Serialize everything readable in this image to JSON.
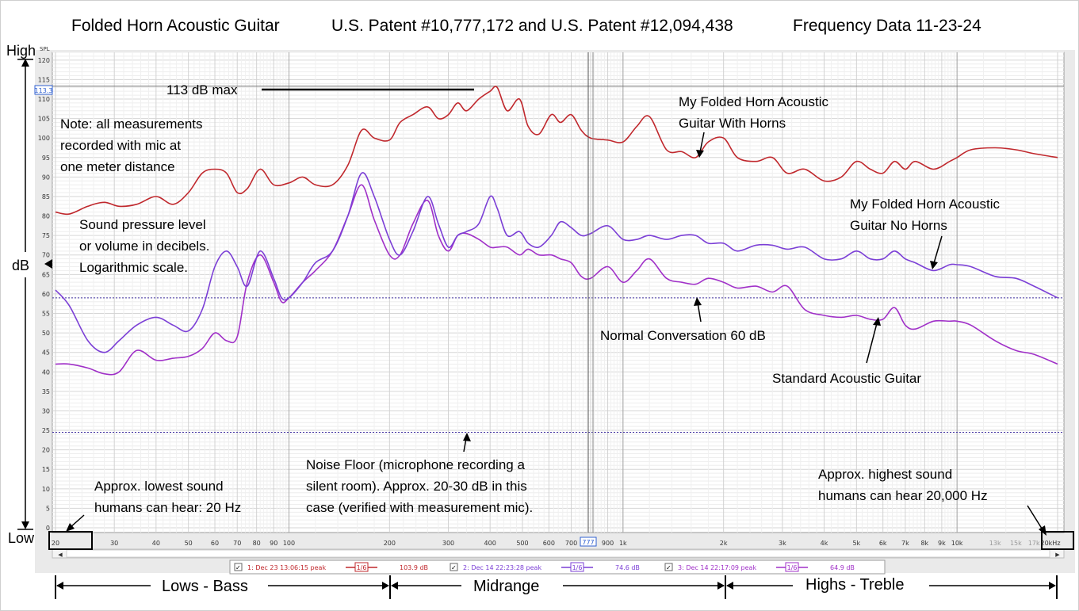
{
  "header": {
    "title": "Folded Horn Acoustic Guitar",
    "patents": "U.S. Patent #10,777,172 and U.S. Patent #12,094,438",
    "date": "Frequency Data 11-23-24"
  },
  "side": {
    "high": "High",
    "low": "Low",
    "db": "dB",
    "spl": "SPL"
  },
  "annotations": {
    "max_line": "113 dB max",
    "note": [
      "Note: all measurements",
      "recorded with mic at",
      "one meter distance"
    ],
    "spl": [
      "Sound pressure level",
      "or volume in decibels.",
      "Logarithmic scale."
    ],
    "horns": [
      "My Folded Horn Acoustic",
      "Guitar With Horns"
    ],
    "no_horns": [
      "My Folded Horn Acoustic",
      "Guitar No Horns"
    ],
    "conversation": "Normal Conversation 60 dB",
    "standard": "Standard Acoustic Guitar",
    "noise": [
      "Noise Floor (microphone recording a",
      "silent room). Approx. 20-30 dB in this",
      "case (verified with measurement mic)."
    ],
    "lowest": [
      "Approx. lowest sound",
      "humans can hear: 20 Hz"
    ],
    "highest": [
      "Approx. highest sound",
      "humans can hear 20,000 Hz"
    ]
  },
  "bands": {
    "lows": "Lows - Bass",
    "mid": "Midrange",
    "highs": "Highs - Treble"
  },
  "cursor": {
    "y_label": "113.3",
    "x_label": "777"
  },
  "legend": [
    {
      "label": "1: Dec 23 13:06:15 peak",
      "smoothing": "1/6",
      "value": "103.9 dB",
      "color": "#c0282d"
    },
    {
      "label": "2: Dec 14 22:23:28 peak",
      "smoothing": "1/6",
      "value": "74.6 dB",
      "color": "#7b3fd6"
    },
    {
      "label": "3: Dec 14 22:17:09 peak",
      "smoothing": "1/6",
      "value": "64.9 dB",
      "color": "#a030c8"
    }
  ],
  "chart_data": {
    "type": "line",
    "xlabel": "",
    "ylabel": "",
    "xscale": "log",
    "xlim": [
      20,
      20000
    ],
    "ylim": [
      0,
      122
    ],
    "y_ticks": [
      0,
      5,
      10,
      15,
      20,
      25,
      30,
      35,
      40,
      45,
      50,
      55,
      60,
      65,
      70,
      75,
      80,
      85,
      90,
      95,
      100,
      105,
      110,
      115,
      120
    ],
    "x_ticks": [
      {
        "v": 20,
        "l": "20"
      },
      {
        "v": 30,
        "l": "30"
      },
      {
        "v": 40,
        "l": "40"
      },
      {
        "v": 50,
        "l": "50"
      },
      {
        "v": 60,
        "l": "60"
      },
      {
        "v": 70,
        "l": "70"
      },
      {
        "v": 80,
        "l": "80"
      },
      {
        "v": 90,
        "l": "90"
      },
      {
        "v": 100,
        "l": "100"
      },
      {
        "v": 200,
        "l": "200"
      },
      {
        "v": 300,
        "l": "300"
      },
      {
        "v": 400,
        "l": "400"
      },
      {
        "v": 500,
        "l": "500"
      },
      {
        "v": 600,
        "l": "600"
      },
      {
        "v": 700,
        "l": "700"
      },
      {
        "v": 900,
        "l": "900"
      },
      {
        "v": 1000,
        "l": "1k"
      },
      {
        "v": 2000,
        "l": "2k"
      },
      {
        "v": 3000,
        "l": "3k"
      },
      {
        "v": 4000,
        "l": "4k"
      },
      {
        "v": 5000,
        "l": "5k"
      },
      {
        "v": 6000,
        "l": "6k"
      },
      {
        "v": 7000,
        "l": "7k"
      },
      {
        "v": 8000,
        "l": "8k"
      },
      {
        "v": 9000,
        "l": "9k"
      },
      {
        "v": 10000,
        "l": "10k"
      },
      {
        "v": 13000,
        "l": "13k"
      },
      {
        "v": 15000,
        "l": "15k"
      },
      {
        "v": 17000,
        "l": "17k"
      },
      {
        "v": 20000,
        "l": "20kHz"
      }
    ],
    "hlines": [
      {
        "y": 113.3,
        "color": "#777777",
        "dash": ""
      },
      {
        "y": 59,
        "color": "#4030a0",
        "dash": "2,2"
      },
      {
        "y": 24.5,
        "color": "#4030a0",
        "dash": "2,2"
      }
    ],
    "series": [
      {
        "name": "1: Dec 23 13:06:15 peak",
        "color": "#c0282d",
        "points": [
          [
            20,
            81
          ],
          [
            22,
            80.5
          ],
          [
            25,
            82.5
          ],
          [
            28,
            83.5
          ],
          [
            31,
            82.5
          ],
          [
            35,
            83
          ],
          [
            40,
            85
          ],
          [
            45,
            83
          ],
          [
            50,
            86
          ],
          [
            55,
            91
          ],
          [
            60,
            92
          ],
          [
            65,
            91
          ],
          [
            70,
            86
          ],
          [
            75,
            87
          ],
          [
            82,
            92
          ],
          [
            90,
            88
          ],
          [
            100,
            88.5
          ],
          [
            110,
            90
          ],
          [
            120,
            88
          ],
          [
            135,
            88
          ],
          [
            150,
            93
          ],
          [
            165,
            102
          ],
          [
            180,
            100
          ],
          [
            200,
            99.5
          ],
          [
            215,
            104
          ],
          [
            235,
            106
          ],
          [
            260,
            108
          ],
          [
            280,
            105
          ],
          [
            300,
            106
          ],
          [
            320,
            109
          ],
          [
            340,
            107
          ],
          [
            370,
            110
          ],
          [
            400,
            112
          ],
          [
            420,
            113
          ],
          [
            450,
            107
          ],
          [
            490,
            110
          ],
          [
            520,
            103
          ],
          [
            560,
            101
          ],
          [
            610,
            106
          ],
          [
            650,
            104
          ],
          [
            700,
            106
          ],
          [
            750,
            102
          ],
          [
            800,
            100
          ],
          [
            900,
            99.5
          ],
          [
            1000,
            99
          ],
          [
            1100,
            103
          ],
          [
            1200,
            105.5
          ],
          [
            1350,
            97
          ],
          [
            1500,
            96.5
          ],
          [
            1650,
            95
          ],
          [
            1800,
            99
          ],
          [
            2000,
            100
          ],
          [
            2200,
            95
          ],
          [
            2500,
            94
          ],
          [
            2800,
            95
          ],
          [
            3100,
            91
          ],
          [
            3500,
            92
          ],
          [
            4000,
            89
          ],
          [
            4500,
            90
          ],
          [
            5000,
            94
          ],
          [
            5500,
            92
          ],
          [
            6000,
            91
          ],
          [
            6500,
            94
          ],
          [
            7000,
            92
          ],
          [
            7500,
            94
          ],
          [
            8500,
            92
          ],
          [
            9500,
            94
          ],
          [
            10000,
            95
          ],
          [
            11000,
            97
          ],
          [
            13000,
            97.5
          ],
          [
            15000,
            97
          ],
          [
            17000,
            96
          ],
          [
            20000,
            95
          ]
        ]
      },
      {
        "name": "2: Dec 14 22:23:28 peak",
        "color": "#7b3fd6",
        "points": [
          [
            20,
            61
          ],
          [
            22,
            57
          ],
          [
            25,
            48
          ],
          [
            28,
            45
          ],
          [
            31,
            48
          ],
          [
            35,
            52
          ],
          [
            40,
            54
          ],
          [
            45,
            52
          ],
          [
            50,
            50.5
          ],
          [
            55,
            56
          ],
          [
            60,
            67
          ],
          [
            65,
            71
          ],
          [
            70,
            67
          ],
          [
            75,
            62
          ],
          [
            82,
            71
          ],
          [
            90,
            64
          ],
          [
            95,
            59
          ],
          [
            100,
            59
          ],
          [
            110,
            63
          ],
          [
            120,
            68
          ],
          [
            135,
            71
          ],
          [
            150,
            80
          ],
          [
            165,
            91
          ],
          [
            180,
            85
          ],
          [
            200,
            74
          ],
          [
            215,
            70
          ],
          [
            235,
            76
          ],
          [
            260,
            85
          ],
          [
            280,
            78
          ],
          [
            300,
            72
          ],
          [
            320,
            75
          ],
          [
            340,
            76
          ],
          [
            370,
            78
          ],
          [
            400,
            85
          ],
          [
            420,
            82
          ],
          [
            450,
            75
          ],
          [
            490,
            76
          ],
          [
            520,
            73
          ],
          [
            560,
            72
          ],
          [
            610,
            75
          ],
          [
            650,
            78.5
          ],
          [
            700,
            77
          ],
          [
            750,
            75
          ],
          [
            800,
            75.5
          ],
          [
            900,
            77.5
          ],
          [
            1000,
            74
          ],
          [
            1100,
            74
          ],
          [
            1200,
            75
          ],
          [
            1350,
            74
          ],
          [
            1500,
            75
          ],
          [
            1650,
            75
          ],
          [
            1800,
            73
          ],
          [
            2000,
            73
          ],
          [
            2200,
            71
          ],
          [
            2500,
            72.5
          ],
          [
            2800,
            72.5
          ],
          [
            3100,
            71.5
          ],
          [
            3500,
            72
          ],
          [
            4000,
            69
          ],
          [
            4500,
            69
          ],
          [
            5000,
            71
          ],
          [
            5500,
            69
          ],
          [
            6000,
            69
          ],
          [
            6500,
            71
          ],
          [
            7000,
            69
          ],
          [
            7500,
            68
          ],
          [
            8500,
            66
          ],
          [
            9500,
            67.5
          ],
          [
            10000,
            67.5
          ],
          [
            11000,
            67
          ],
          [
            13000,
            64.5
          ],
          [
            15000,
            64
          ],
          [
            17000,
            62
          ],
          [
            20000,
            59
          ]
        ]
      },
      {
        "name": "3: Dec 14 22:17:09 peak",
        "color": "#a030c8",
        "points": [
          [
            20,
            42
          ],
          [
            22,
            42
          ],
          [
            25,
            41
          ],
          [
            28,
            39.5
          ],
          [
            31,
            40
          ],
          [
            35,
            45.5
          ],
          [
            40,
            43
          ],
          [
            45,
            43.5
          ],
          [
            50,
            44
          ],
          [
            55,
            46
          ],
          [
            60,
            50
          ],
          [
            65,
            48
          ],
          [
            70,
            49
          ],
          [
            75,
            63
          ],
          [
            82,
            70
          ],
          [
            90,
            63
          ],
          [
            95,
            58
          ],
          [
            100,
            59
          ],
          [
            110,
            63
          ],
          [
            120,
            66
          ],
          [
            135,
            71
          ],
          [
            150,
            80
          ],
          [
            165,
            88
          ],
          [
            180,
            79
          ],
          [
            200,
            70
          ],
          [
            215,
            70
          ],
          [
            235,
            78
          ],
          [
            260,
            84
          ],
          [
            280,
            75
          ],
          [
            300,
            71
          ],
          [
            320,
            75
          ],
          [
            340,
            75.5
          ],
          [
            370,
            74
          ],
          [
            400,
            72
          ],
          [
            420,
            72
          ],
          [
            450,
            72
          ],
          [
            490,
            70
          ],
          [
            520,
            71.5
          ],
          [
            560,
            70
          ],
          [
            610,
            70
          ],
          [
            650,
            69
          ],
          [
            700,
            68
          ],
          [
            750,
            64.5
          ],
          [
            800,
            64
          ],
          [
            900,
            67
          ],
          [
            1000,
            63
          ],
          [
            1100,
            66
          ],
          [
            1200,
            69
          ],
          [
            1350,
            64
          ],
          [
            1500,
            63
          ],
          [
            1650,
            62.5
          ],
          [
            1800,
            64
          ],
          [
            2000,
            63
          ],
          [
            2200,
            61.5
          ],
          [
            2500,
            62
          ],
          [
            2800,
            60.5
          ],
          [
            3100,
            62
          ],
          [
            3500,
            56
          ],
          [
            4000,
            54.5
          ],
          [
            4500,
            54
          ],
          [
            5000,
            54.5
          ],
          [
            5500,
            53.5
          ],
          [
            6000,
            53.5
          ],
          [
            6500,
            56.5
          ],
          [
            7000,
            52
          ],
          [
            7500,
            51
          ],
          [
            8500,
            53
          ],
          [
            9500,
            53
          ],
          [
            10000,
            53
          ],
          [
            11000,
            52
          ],
          [
            13000,
            48
          ],
          [
            15000,
            45.5
          ],
          [
            17000,
            44.5
          ],
          [
            20000,
            42
          ]
        ]
      }
    ]
  }
}
